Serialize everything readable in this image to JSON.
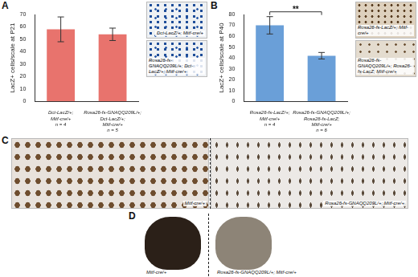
{
  "panel_letters": [
    "A",
    "B",
    "C",
    "D"
  ],
  "chart_data": [
    {
      "type": "bar",
      "ylabel": "LacZ+ cells/scale at P21",
      "categories": [
        "Dct-LacZ/+; Mitf-cre/+",
        "Rosa26-fs-GNAQQ209L/+; Dct-LacZ/+; Mitf-cre/+"
      ],
      "values": [
        58,
        54
      ],
      "errors": [
        10,
        5
      ],
      "n_labels": [
        "n = 4",
        "n = 5"
      ],
      "color": "#e8736d",
      "ylim": [
        0,
        70
      ],
      "yticks": [
        0,
        10,
        20,
        30,
        40,
        50,
        60,
        70
      ],
      "grid": false
    },
    {
      "type": "bar",
      "ylabel": "LacZ+ cells/scale at P40",
      "categories": [
        "Rosa26-fs-LacZ/+; Mitf-cre/+",
        "Rosa26-fs-GNAQQ209L/+; Rosa26-fs-LacZ; Mitf-cre/+"
      ],
      "values": [
        70,
        42
      ],
      "errors": [
        8,
        3
      ],
      "n_labels": [
        "n = 4",
        "n = 6"
      ],
      "significance": "**",
      "color": "#6a9fd8",
      "ylim": [
        0,
        80
      ],
      "yticks": [
        0,
        10,
        20,
        30,
        40,
        50,
        60,
        70,
        80
      ],
      "grid": false
    }
  ],
  "photos": {
    "A": [
      "Dct-LacZ/+; Mitf-cre/+",
      "Rosa26-fs-GNAQQ209L/+; Dct-LacZ/+; Mitf-cre/+"
    ],
    "B": [
      "Rosa26-fs-LacZ/+; Mitf-cre/+",
      "Rosa26-fs-GNAQQ209L/+; Rosa26-fs-LacZ; Mitf-cre/+"
    ],
    "C": [
      "Mitf-cre/+",
      "Rosa26-fs-GNAQQ209L/+; Mitf-cre/+"
    ],
    "D": [
      "Mitf-cre/+",
      "Rosa26-fs-GNAQQ209L/+; Mitf-cre/+"
    ]
  }
}
